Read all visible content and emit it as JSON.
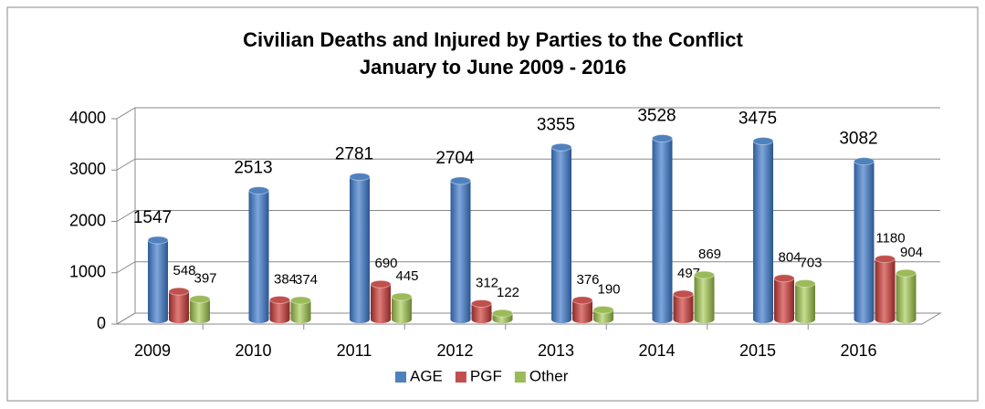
{
  "chart_data": {
    "type": "bar",
    "title": "Civilian Deaths and Injured by Parties to the Conflict",
    "subtitle": "January to June 2009 - 2016",
    "categories": [
      "2009",
      "2010",
      "2011",
      "2012",
      "2013",
      "2014",
      "2015",
      "2016"
    ],
    "series": [
      {
        "name": "AGE",
        "color": "#4f81bd",
        "values": [
          1547,
          2513,
          2781,
          2704,
          3355,
          3528,
          3475,
          3082
        ]
      },
      {
        "name": "PGF",
        "color": "#c0504d",
        "values": [
          548,
          384,
          690,
          312,
          376,
          497,
          804,
          1180
        ]
      },
      {
        "name": "Other",
        "color": "#9bbb59",
        "values": [
          397,
          374,
          445,
          122,
          190,
          869,
          703,
          904
        ]
      }
    ],
    "ylim": [
      0,
      4000
    ],
    "yticks": [
      0,
      1000,
      2000,
      3000,
      4000
    ],
    "grid": true,
    "legend": "bottom"
  }
}
